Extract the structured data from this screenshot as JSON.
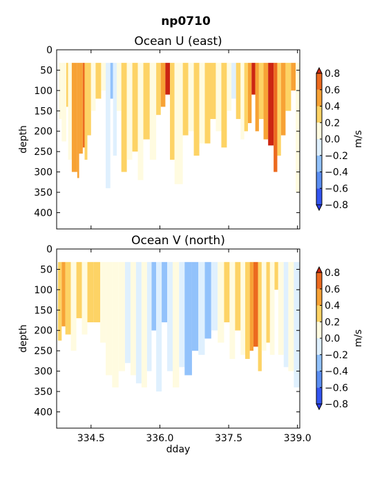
{
  "figure": {
    "suptitle": "np0710"
  },
  "chart_data": [
    {
      "type": "heatmap",
      "title": "Ocean U (east)",
      "ylabel": "depth",
      "xlabel": "",
      "xlim": [
        333.75,
        339.05
      ],
      "ylim": [
        440,
        0
      ],
      "yticks": [
        0,
        50,
        100,
        150,
        200,
        250,
        300,
        350,
        400
      ],
      "xticks": [
        334.5,
        336.0,
        337.5,
        339.0
      ],
      "xticklabels": [
        "",
        "",
        "",
        ""
      ],
      "data_top_depth": 32,
      "colorbar": {
        "label": "m/s",
        "ticks": [
          -0.8,
          -0.6,
          -0.4,
          -0.2,
          0.0,
          0.2,
          0.4,
          0.6,
          0.8
        ],
        "ticklabels": [
          "−0.8",
          "−0.6",
          "−0.4",
          "−0.2",
          "0.0",
          "0.2",
          "0.4",
          "0.6",
          "0.8"
        ],
        "colors": [
          "#3355f0",
          "#5a8ef2",
          "#92c2fb",
          "#dff0fe",
          "#fffbe0",
          "#fdd365",
          "#f7a235",
          "#ec6a1f"
        ],
        "over_color": "#cc2512",
        "under_color": "#2a3de8"
      },
      "events": [
        {
          "day": 333.8,
          "end": 333.86,
          "value": 0.12,
          "bottom": 170
        },
        {
          "day": 333.86,
          "end": 333.96,
          "value": 0.08,
          "bottom": 225
        },
        {
          "day": 333.96,
          "end": 334.0,
          "value": 0.25,
          "bottom": 140
        },
        {
          "day": 334.0,
          "end": 334.08,
          "value": 0.15,
          "bottom": 270
        },
        {
          "day": 334.08,
          "end": 334.2,
          "value": 0.45,
          "bottom": 300
        },
        {
          "day": 334.2,
          "end": 334.24,
          "value": 0.55,
          "bottom": 315
        },
        {
          "day": 334.24,
          "end": 334.32,
          "value": 0.48,
          "bottom": 255
        },
        {
          "day": 334.32,
          "end": 334.36,
          "value": 0.62,
          "bottom": 240
        },
        {
          "day": 334.36,
          "end": 334.42,
          "value": 0.35,
          "bottom": 270
        },
        {
          "day": 334.42,
          "end": 334.5,
          "value": 0.25,
          "bottom": 210
        },
        {
          "day": 334.5,
          "end": 334.6,
          "value": 0.12,
          "bottom": 150
        },
        {
          "day": 334.6,
          "end": 334.72,
          "value": 0.25,
          "bottom": 120
        },
        {
          "day": 334.72,
          "end": 334.82,
          "value": 0.08,
          "bottom": 100
        },
        {
          "day": 334.82,
          "end": 334.92,
          "value": -0.08,
          "bottom": 340
        },
        {
          "day": 334.92,
          "end": 334.98,
          "value": -0.25,
          "bottom": 120
        },
        {
          "day": 334.98,
          "end": 335.06,
          "value": -0.08,
          "bottom": 260
        },
        {
          "day": 335.06,
          "end": 335.16,
          "value": 0.08,
          "bottom": 150
        },
        {
          "day": 335.16,
          "end": 335.28,
          "value": 0.25,
          "bottom": 300
        },
        {
          "day": 335.28,
          "end": 335.4,
          "value": 0.1,
          "bottom": 270
        },
        {
          "day": 335.4,
          "end": 335.52,
          "value": 0.2,
          "bottom": 250
        },
        {
          "day": 335.52,
          "end": 335.64,
          "value": 0.12,
          "bottom": 320
        },
        {
          "day": 335.64,
          "end": 335.78,
          "value": 0.3,
          "bottom": 220
        },
        {
          "day": 335.78,
          "end": 335.92,
          "value": 0.1,
          "bottom": 270
        },
        {
          "day": 335.92,
          "end": 336.02,
          "value": 0.32,
          "bottom": 160
        },
        {
          "day": 336.02,
          "end": 336.12,
          "value": 0.55,
          "bottom": 140
        },
        {
          "day": 336.12,
          "end": 336.22,
          "value": 0.85,
          "bottom": 110
        },
        {
          "day": 336.22,
          "end": 336.32,
          "value": 0.25,
          "bottom": 270
        },
        {
          "day": 336.32,
          "end": 336.5,
          "value": 0.1,
          "bottom": 330
        },
        {
          "day": 336.5,
          "end": 336.62,
          "value": 0.25,
          "bottom": 210
        },
        {
          "day": 336.62,
          "end": 336.74,
          "value": 0.08,
          "bottom": 200
        },
        {
          "day": 336.74,
          "end": 336.86,
          "value": 0.25,
          "bottom": 260
        },
        {
          "day": 336.86,
          "end": 336.98,
          "value": 0.1,
          "bottom": 230
        },
        {
          "day": 336.98,
          "end": 337.1,
          "value": 0.3,
          "bottom": 230
        },
        {
          "day": 337.1,
          "end": 337.22,
          "value": 0.25,
          "bottom": 170
        },
        {
          "day": 337.22,
          "end": 337.34,
          "value": 0.12,
          "bottom": 200
        },
        {
          "day": 337.34,
          "end": 337.46,
          "value": 0.22,
          "bottom": 240
        },
        {
          "day": 337.46,
          "end": 337.56,
          "value": 0.1,
          "bottom": 150
        },
        {
          "day": 337.56,
          "end": 337.66,
          "value": -0.08,
          "bottom": 120
        },
        {
          "day": 337.66,
          "end": 337.76,
          "value": 0.25,
          "bottom": 170
        },
        {
          "day": 337.76,
          "end": 337.84,
          "value": 0.1,
          "bottom": 220
        },
        {
          "day": 337.84,
          "end": 337.92,
          "value": 0.28,
          "bottom": 200
        },
        {
          "day": 337.92,
          "end": 338.0,
          "value": 0.55,
          "bottom": 180
        },
        {
          "day": 338.0,
          "end": 338.08,
          "value": 0.85,
          "bottom": 110
        },
        {
          "day": 338.08,
          "end": 338.16,
          "value": 0.4,
          "bottom": 200
        },
        {
          "day": 338.16,
          "end": 338.26,
          "value": 0.25,
          "bottom": 170
        },
        {
          "day": 338.26,
          "end": 338.36,
          "value": 0.45,
          "bottom": 220
        },
        {
          "day": 338.36,
          "end": 338.48,
          "value": 0.88,
          "bottom": 235
        },
        {
          "day": 338.48,
          "end": 338.56,
          "value": 0.62,
          "bottom": 300
        },
        {
          "day": 338.56,
          "end": 338.64,
          "value": 0.3,
          "bottom": 260
        },
        {
          "day": 338.64,
          "end": 338.74,
          "value": 0.45,
          "bottom": 210
        },
        {
          "day": 338.74,
          "end": 338.86,
          "value": 0.25,
          "bottom": 150
        },
        {
          "day": 338.86,
          "end": 338.96,
          "value": 0.45,
          "bottom": 100
        },
        {
          "day": 338.96,
          "end": 339.05,
          "value": 0.15,
          "bottom": 350
        }
      ]
    },
    {
      "type": "heatmap",
      "title": "Ocean V (north)",
      "ylabel": "depth",
      "xlabel": "dday",
      "xlim": [
        333.75,
        339.05
      ],
      "ylim": [
        440,
        0
      ],
      "yticks": [
        0,
        50,
        100,
        150,
        200,
        250,
        300,
        350,
        400
      ],
      "xticks": [
        334.5,
        336.0,
        337.5,
        339.0
      ],
      "xticklabels": [
        "334.5",
        "336.0",
        "337.5",
        "339.0"
      ],
      "data_top_depth": 32,
      "colorbar": {
        "label": "m/s",
        "ticks": [
          -0.8,
          -0.6,
          -0.4,
          -0.2,
          0.0,
          0.2,
          0.4,
          0.6,
          0.8
        ],
        "ticklabels": [
          "−0.8",
          "−0.6",
          "−0.4",
          "−0.2",
          "0.0",
          "0.2",
          "0.4",
          "0.6",
          "0.8"
        ],
        "colors": [
          "#3355f0",
          "#5a8ef2",
          "#92c2fb",
          "#dff0fe",
          "#fffbe0",
          "#fdd365",
          "#f7a235",
          "#ec6a1f"
        ],
        "over_color": "#cc2512",
        "under_color": "#2a3de8"
      },
      "events": [
        {
          "day": 333.78,
          "end": 333.86,
          "value": 0.3,
          "bottom": 225
        },
        {
          "day": 333.86,
          "end": 333.94,
          "value": 0.45,
          "bottom": 190
        },
        {
          "day": 333.94,
          "end": 334.06,
          "value": 0.25,
          "bottom": 210
        },
        {
          "day": 334.06,
          "end": 334.18,
          "value": 0.12,
          "bottom": 250
        },
        {
          "day": 334.18,
          "end": 334.3,
          "value": 0.3,
          "bottom": 170
        },
        {
          "day": 334.3,
          "end": 334.42,
          "value": 0.1,
          "bottom": 210
        },
        {
          "day": 334.42,
          "end": 334.56,
          "value": 0.25,
          "bottom": 180
        },
        {
          "day": 334.56,
          "end": 334.7,
          "value": 0.3,
          "bottom": 180
        },
        {
          "day": 334.7,
          "end": 334.82,
          "value": 0.12,
          "bottom": 230
        },
        {
          "day": 334.82,
          "end": 334.96,
          "value": 0.08,
          "bottom": 310
        },
        {
          "day": 334.96,
          "end": 335.1,
          "value": 0.1,
          "bottom": 340
        },
        {
          "day": 335.1,
          "end": 335.24,
          "value": 0.08,
          "bottom": 300
        },
        {
          "day": 335.24,
          "end": 335.36,
          "value": -0.08,
          "bottom": 280
        },
        {
          "day": 335.36,
          "end": 335.48,
          "value": 0.12,
          "bottom": 310
        },
        {
          "day": 335.48,
          "end": 335.6,
          "value": -0.1,
          "bottom": 330
        },
        {
          "day": 335.6,
          "end": 335.72,
          "value": 0.08,
          "bottom": 340
        },
        {
          "day": 335.72,
          "end": 335.82,
          "value": -0.1,
          "bottom": 300
        },
        {
          "day": 335.82,
          "end": 335.92,
          "value": -0.25,
          "bottom": 200
        },
        {
          "day": 335.92,
          "end": 336.04,
          "value": -0.08,
          "bottom": 350
        },
        {
          "day": 336.04,
          "end": 336.16,
          "value": -0.3,
          "bottom": 180
        },
        {
          "day": 336.16,
          "end": 336.28,
          "value": -0.1,
          "bottom": 300
        },
        {
          "day": 336.28,
          "end": 336.42,
          "value": 0.08,
          "bottom": 340
        },
        {
          "day": 336.42,
          "end": 336.54,
          "value": -0.08,
          "bottom": 290
        },
        {
          "day": 336.54,
          "end": 336.7,
          "value": -0.3,
          "bottom": 310
        },
        {
          "day": 336.7,
          "end": 336.84,
          "value": -0.25,
          "bottom": 250
        },
        {
          "day": 336.84,
          "end": 336.98,
          "value": -0.1,
          "bottom": 260
        },
        {
          "day": 336.98,
          "end": 337.12,
          "value": -0.25,
          "bottom": 220
        },
        {
          "day": 337.12,
          "end": 337.26,
          "value": -0.08,
          "bottom": 200
        },
        {
          "day": 337.26,
          "end": 337.4,
          "value": 0.1,
          "bottom": 230
        },
        {
          "day": 337.4,
          "end": 337.52,
          "value": 0.25,
          "bottom": 180
        },
        {
          "day": 337.52,
          "end": 337.64,
          "value": 0.1,
          "bottom": 270
        },
        {
          "day": 337.64,
          "end": 337.76,
          "value": 0.3,
          "bottom": 200
        },
        {
          "day": 337.76,
          "end": 337.86,
          "value": 0.12,
          "bottom": 260
        },
        {
          "day": 337.86,
          "end": 337.96,
          "value": 0.3,
          "bottom": 270
        },
        {
          "day": 337.96,
          "end": 338.04,
          "value": 0.45,
          "bottom": 250
        },
        {
          "day": 338.04,
          "end": 338.14,
          "value": 0.62,
          "bottom": 240
        },
        {
          "day": 338.14,
          "end": 338.22,
          "value": 0.35,
          "bottom": 300
        },
        {
          "day": 338.22,
          "end": 338.32,
          "value": 0.12,
          "bottom": 250
        },
        {
          "day": 338.32,
          "end": 338.4,
          "value": 0.25,
          "bottom": 230
        },
        {
          "day": 338.4,
          "end": 338.5,
          "value": 0.1,
          "bottom": 260
        },
        {
          "day": 338.5,
          "end": 338.58,
          "value": 0.3,
          "bottom": 100
        },
        {
          "day": 338.58,
          "end": 338.7,
          "value": 0.1,
          "bottom": 260
        },
        {
          "day": 338.7,
          "end": 338.8,
          "value": -0.08,
          "bottom": 290
        },
        {
          "day": 338.8,
          "end": 338.92,
          "value": 0.08,
          "bottom": 300
        },
        {
          "day": 338.92,
          "end": 339.05,
          "value": -0.1,
          "bottom": 340
        }
      ]
    }
  ]
}
